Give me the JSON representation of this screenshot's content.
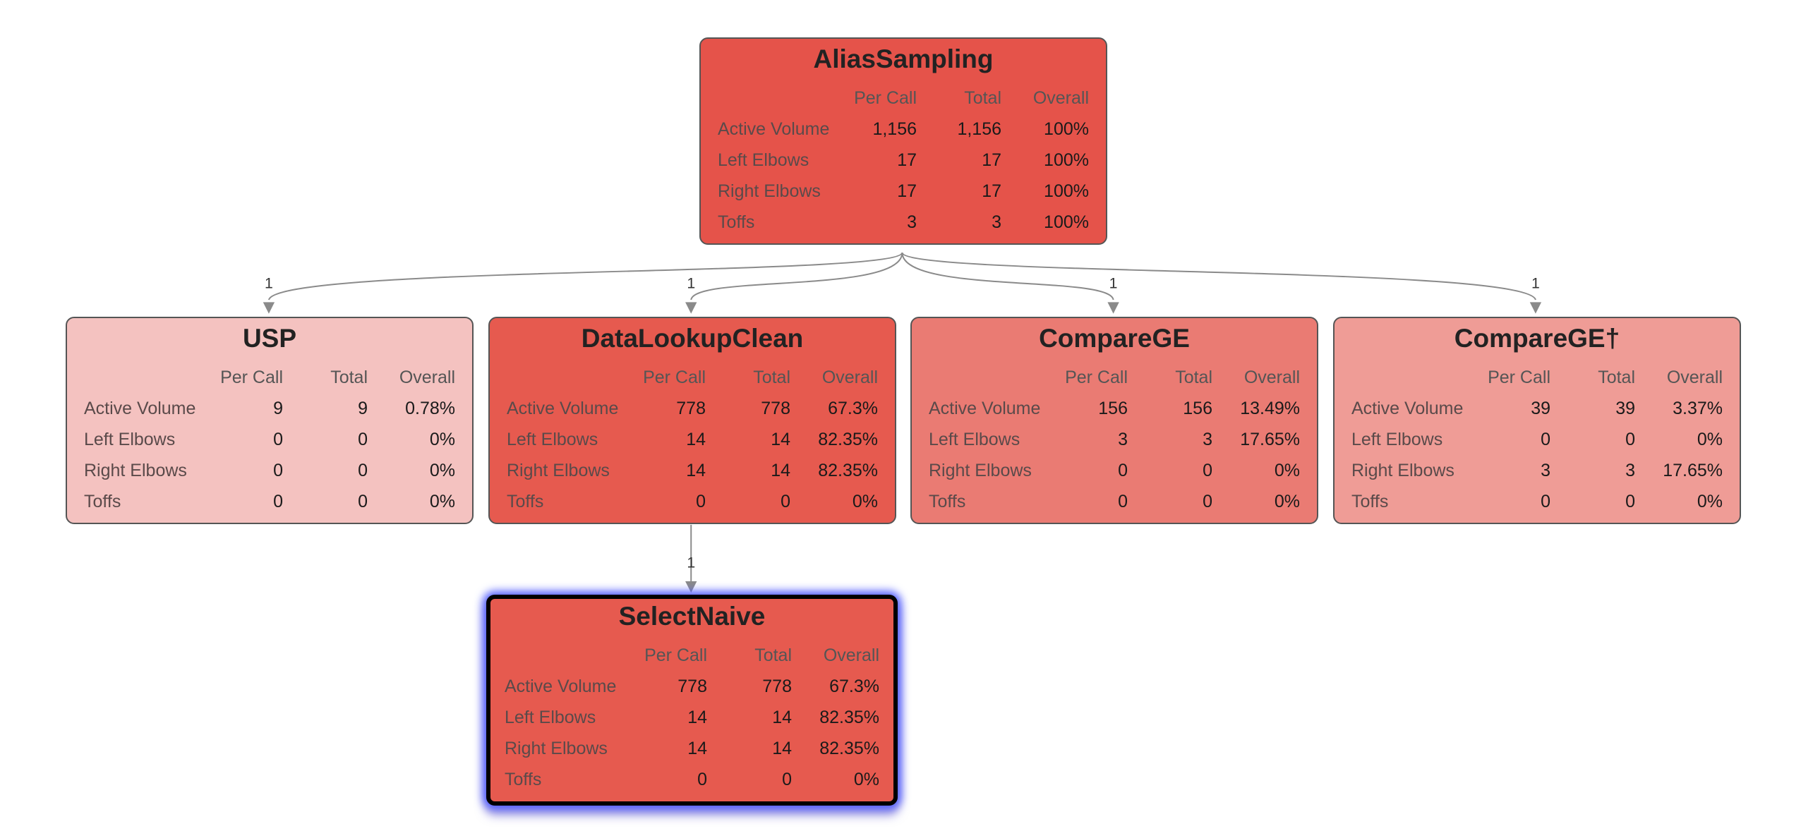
{
  "columns": [
    "Per Call",
    "Total",
    "Overall"
  ],
  "rows": [
    "Active Volume",
    "Left Elbows",
    "Right Elbows",
    "Toffs"
  ],
  "nodes": [
    {
      "id": "aliassampling",
      "name": "AliasSampling",
      "color": "#e5534a",
      "values": [
        [
          "1,156",
          "1,156",
          "100%"
        ],
        [
          "17",
          "17",
          "100%"
        ],
        [
          "17",
          "17",
          "100%"
        ],
        [
          "3",
          "3",
          "100%"
        ]
      ]
    },
    {
      "id": "usp",
      "name": "USP",
      "color": "#f4c2c0",
      "values": [
        [
          "9",
          "9",
          "0.78%"
        ],
        [
          "0",
          "0",
          "0%"
        ],
        [
          "0",
          "0",
          "0%"
        ],
        [
          "0",
          "0",
          "0%"
        ]
      ]
    },
    {
      "id": "datalookupclean",
      "name": "DataLookupClean",
      "color": "#e65a4f",
      "values": [
        [
          "778",
          "778",
          "67.3%"
        ],
        [
          "14",
          "14",
          "82.35%"
        ],
        [
          "14",
          "14",
          "82.35%"
        ],
        [
          "0",
          "0",
          "0%"
        ]
      ]
    },
    {
      "id": "comparege",
      "name": "CompareGE",
      "color": "#ea7b73",
      "values": [
        [
          "156",
          "156",
          "13.49%"
        ],
        [
          "3",
          "3",
          "17.65%"
        ],
        [
          "0",
          "0",
          "0%"
        ],
        [
          "0",
          "0",
          "0%"
        ]
      ]
    },
    {
      "id": "comparege-dagger",
      "name": "CompareGE†",
      "color": "#ef9c96",
      "values": [
        [
          "39",
          "39",
          "3.37%"
        ],
        [
          "0",
          "0",
          "0%"
        ],
        [
          "3",
          "3",
          "17.65%"
        ],
        [
          "0",
          "0",
          "0%"
        ]
      ]
    },
    {
      "id": "selectnaive",
      "name": "SelectNaive",
      "color": "#e65a4f",
      "selected": true,
      "values": [
        [
          "778",
          "778",
          "67.3%"
        ],
        [
          "14",
          "14",
          "82.35%"
        ],
        [
          "14",
          "14",
          "82.35%"
        ],
        [
          "0",
          "0",
          "0%"
        ]
      ]
    }
  ],
  "edges": [
    {
      "from": "aliassampling",
      "to": "usp",
      "label": "1"
    },
    {
      "from": "aliassampling",
      "to": "datalookupclean",
      "label": "1"
    },
    {
      "from": "aliassampling",
      "to": "comparege",
      "label": "1"
    },
    {
      "from": "aliassampling",
      "to": "comparege-dagger",
      "label": "1"
    },
    {
      "from": "datalookupclean",
      "to": "selectnaive",
      "label": "1"
    }
  ]
}
